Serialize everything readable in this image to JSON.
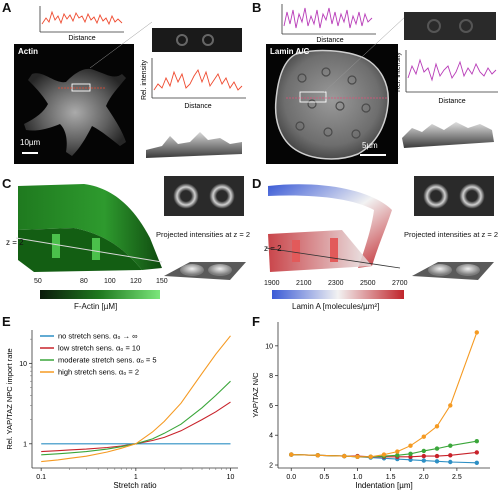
{
  "panels": {
    "A": {
      "letter": "A",
      "stain": "Actin",
      "scalebar": "10µm",
      "xlabel": "Distance",
      "ylabel": "Rel. intensity",
      "color": "#ef4a2f"
    },
    "B": {
      "letter": "B",
      "stain": "Lamin A/C",
      "scalebar": "5µm",
      "xlabel": "Distance",
      "ylabel": "Rel. intensity",
      "color": "#b83cb8"
    },
    "C": {
      "letter": "C",
      "z_label": "z = 2",
      "projected_label": "Projected intensities at z = 2",
      "colorbar_ticks": [
        "50",
        "80",
        "100",
        "120",
        "150"
      ],
      "colorbar_label": "F-Actin [µM]",
      "colors": [
        "#0b1a0b",
        "#1f7a1f",
        "#7be67b"
      ]
    },
    "D": {
      "letter": "D",
      "z_label": "z = 2",
      "projected_label": "Projected intensities at z = 2",
      "colorbar_ticks": [
        "1900",
        "2100",
        "2300",
        "2500",
        "2700"
      ],
      "colorbar_label": "Lamin A [molecules/µm²]",
      "colors": [
        "#3b5bd6",
        "#f2f2f2",
        "#c0242a"
      ]
    },
    "E": {
      "letter": "E"
    },
    "F": {
      "letter": "F"
    }
  },
  "chart_data": [
    {
      "type": "line",
      "panel": "E",
      "xlabel": "Stretch ratio",
      "ylabel": "Rel. YAP/TAZ NPC import rate",
      "xscale": "log",
      "yscale": "log",
      "xlim": [
        0.1,
        10
      ],
      "xticks": [
        "0.1",
        "1",
        "10"
      ],
      "yticks": [
        "1",
        "10"
      ],
      "legend_position": "top-left",
      "x": [
        0.1,
        0.15,
        0.2,
        0.3,
        0.5,
        0.7,
        1,
        1.5,
        2,
        3,
        5,
        7,
        10
      ],
      "series": [
        {
          "name": "no stretch sens.  α₀ → ∞",
          "color": "#2d8fc4",
          "values": [
            1,
            1,
            1,
            1,
            1,
            1,
            1,
            1,
            1,
            1,
            1,
            1,
            1
          ]
        },
        {
          "name": "low stretch sens.  α₀ = 10",
          "color": "#c8222a",
          "values": [
            0.8,
            0.82,
            0.84,
            0.86,
            0.9,
            0.94,
            1,
            1.1,
            1.2,
            1.45,
            2.0,
            2.5,
            3.3
          ]
        },
        {
          "name": "moderate stretch sens.  α₀ = 5",
          "color": "#3aa63a",
          "values": [
            0.73,
            0.75,
            0.77,
            0.8,
            0.86,
            0.92,
            1,
            1.15,
            1.35,
            1.75,
            2.8,
            4.0,
            6.0
          ]
        },
        {
          "name": "high stretch sens.  α₀ = 2",
          "color": "#f59a22",
          "values": [
            0.6,
            0.63,
            0.66,
            0.7,
            0.79,
            0.88,
            1,
            1.4,
            1.9,
            3.2,
            7.5,
            13,
            22
          ]
        }
      ]
    },
    {
      "type": "line",
      "panel": "F",
      "xlabel": "Indentation [µm]",
      "ylabel": "YAP/TAZ N/C",
      "xlim": [
        -0.2,
        3.0
      ],
      "ylim": [
        1.8,
        11.6
      ],
      "xticks": [
        0.0,
        0.5,
        1.0,
        1.5,
        2.0,
        2.5
      ],
      "yticks": [
        2,
        4,
        6,
        8,
        10
      ],
      "x": [
        0.0,
        0.4,
        0.8,
        1.0,
        1.2,
        1.4,
        1.6,
        1.8,
        2.0,
        2.2,
        2.4,
        2.8
      ],
      "series": [
        {
          "color": "#2d8fc4",
          "values": [
            2.7,
            2.65,
            2.6,
            2.55,
            2.5,
            2.45,
            2.4,
            2.35,
            2.3,
            2.25,
            2.2,
            2.15
          ]
        },
        {
          "color": "#c8222a",
          "values": [
            2.7,
            2.65,
            2.6,
            2.6,
            2.55,
            2.55,
            2.55,
            2.55,
            2.6,
            2.6,
            2.65,
            2.85
          ]
        },
        {
          "color": "#3aa63a",
          "values": [
            2.7,
            2.65,
            2.6,
            2.55,
            2.55,
            2.6,
            2.65,
            2.75,
            2.95,
            3.1,
            3.3,
            3.6
          ]
        },
        {
          "color": "#f59a22",
          "values": [
            2.7,
            2.65,
            2.6,
            2.55,
            2.55,
            2.7,
            2.9,
            3.3,
            3.9,
            4.6,
            6.0,
            10.9
          ]
        }
      ]
    }
  ]
}
